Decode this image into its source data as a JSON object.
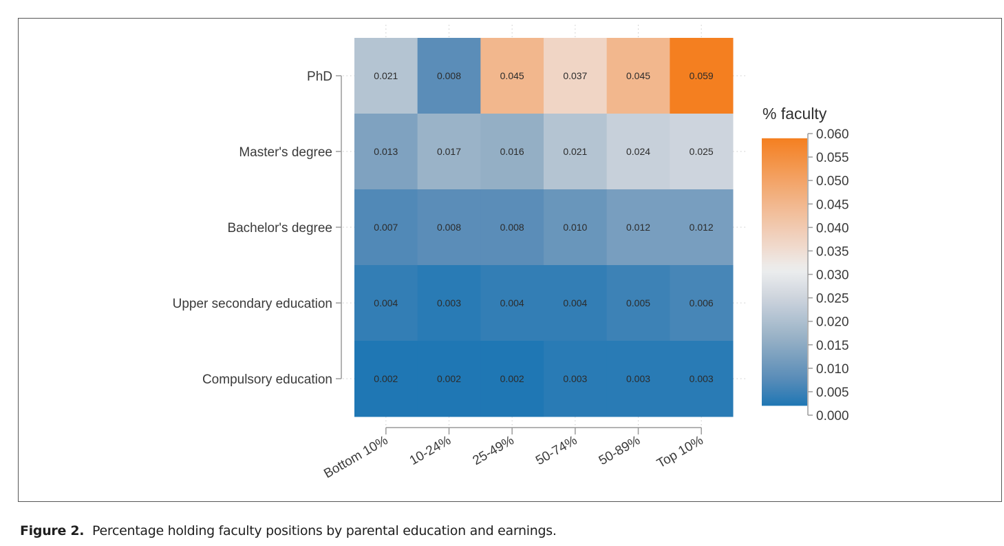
{
  "chart_data": {
    "type": "heatmap",
    "title": "",
    "xlabel": "",
    "ylabel": "",
    "x_categories": [
      "Bottom 10%",
      "10-24%",
      "25-49%",
      "50-74%",
      "50-89%",
      "Top 10%"
    ],
    "y_categories": [
      "PhD",
      "Master's degree",
      "Bachelor's degree",
      "Upper secondary education",
      "Compulsory education"
    ],
    "values": [
      [
        0.021,
        0.008,
        0.045,
        0.037,
        0.045,
        0.059
      ],
      [
        0.013,
        0.017,
        0.016,
        0.021,
        0.024,
        0.025
      ],
      [
        0.007,
        0.008,
        0.008,
        0.01,
        0.012,
        0.012
      ],
      [
        0.004,
        0.003,
        0.004,
        0.004,
        0.005,
        0.006
      ],
      [
        0.002,
        0.002,
        0.002,
        0.003,
        0.003,
        0.003
      ]
    ],
    "cell_labels": [
      [
        "0.021",
        "0.008",
        "0.045",
        "0.037",
        "0.045",
        "0.059"
      ],
      [
        "0.013",
        "0.017",
        "0.016",
        "0.021",
        "0.024",
        "0.025"
      ],
      [
        "0.007",
        "0.008",
        "0.008",
        "0.010",
        "0.012",
        "0.012"
      ],
      [
        "0.004",
        "0.003",
        "0.004",
        "0.004",
        "0.005",
        "0.006"
      ],
      [
        "0.002",
        "0.002",
        "0.002",
        "0.003",
        "0.003",
        "0.003"
      ]
    ],
    "legend": {
      "title": "% faculty",
      "placement": "right",
      "range": [
        0.0,
        0.06
      ],
      "data_range": [
        0.002,
        0.059
      ],
      "ticks": [
        0.06,
        0.055,
        0.05,
        0.045,
        0.04,
        0.035,
        0.03,
        0.025,
        0.02,
        0.015,
        0.01,
        0.005,
        0.0
      ],
      "tick_labels": [
        "0.060",
        "0.055",
        "0.050",
        "0.045",
        "0.040",
        "0.035",
        "0.030",
        "0.025",
        "0.020",
        "0.015",
        "0.010",
        "0.005",
        "0.000"
      ]
    },
    "color_scale": [
      {
        "value": 0.002,
        "color": "#1F77B4"
      },
      {
        "value": 0.008,
        "color": "#5B8DB8"
      },
      {
        "value": 0.016,
        "color": "#94AFC5"
      },
      {
        "value": 0.025,
        "color": "#CDD4DD"
      },
      {
        "value": 0.031,
        "color": "#EDEEEE"
      },
      {
        "value": 0.037,
        "color": "#F0D5C5"
      },
      {
        "value": 0.045,
        "color": "#F2B78D"
      },
      {
        "value": 0.059,
        "color": "#F47F20"
      }
    ],
    "grid": true
  },
  "caption": {
    "figure_number": "Figure 2.",
    "text": "Percentage holding faculty positions by parental education and earnings."
  },
  "colors": {
    "axis": "#9a9a9a",
    "grid": "#c8c8c8",
    "frame": "#555555"
  }
}
